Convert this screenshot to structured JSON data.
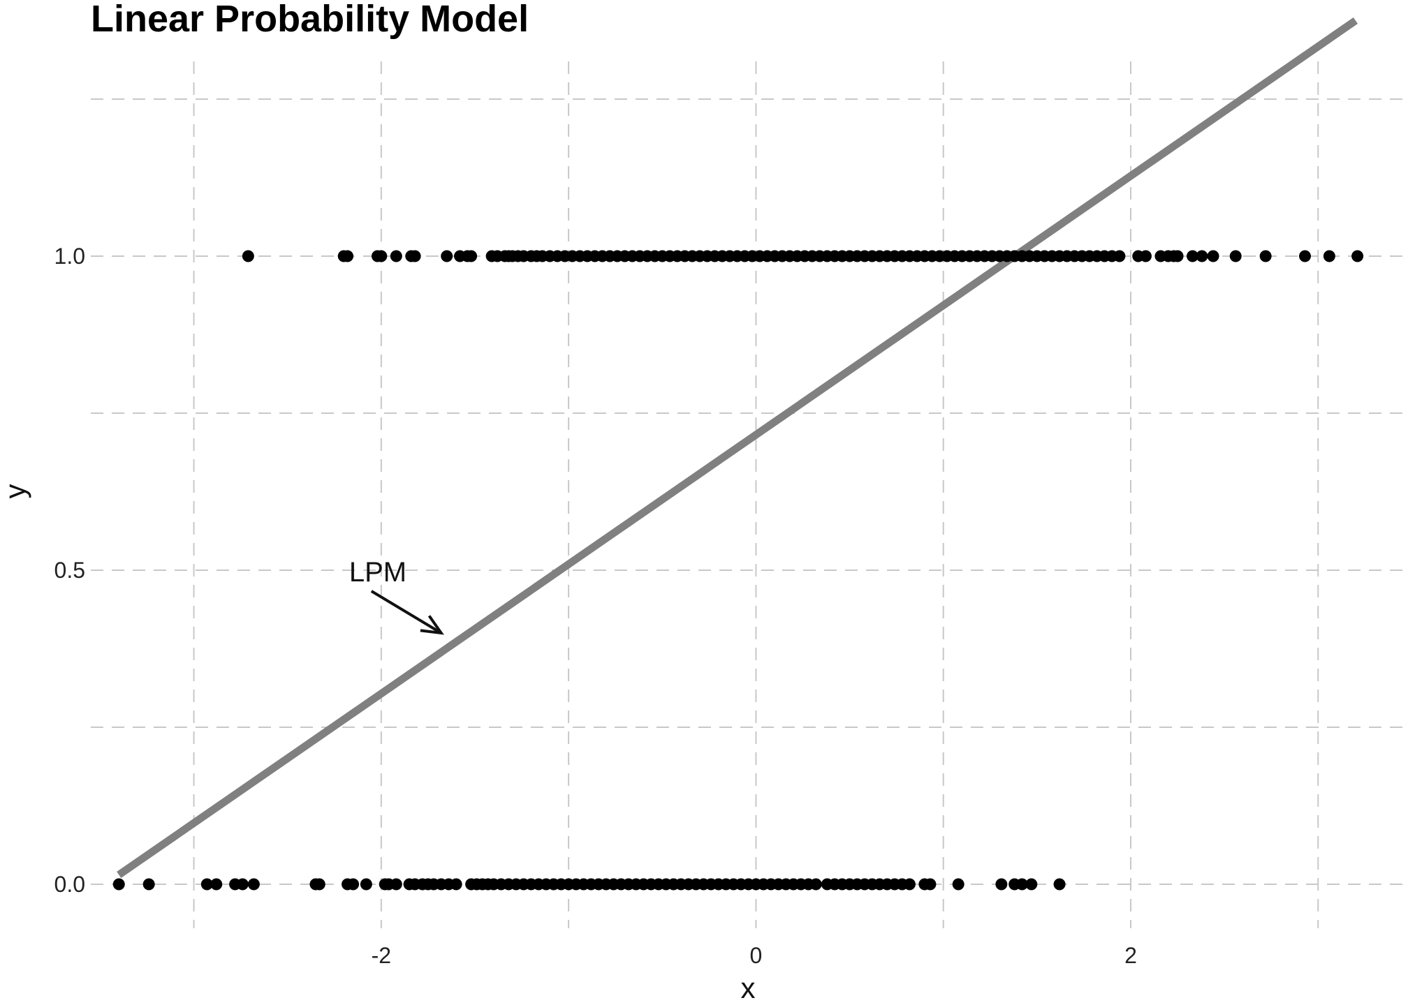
{
  "chart_data": {
    "type": "scatter",
    "title": "Linear Probability Model",
    "xlabel": "x",
    "ylabel": "y",
    "xlim": [
      -3.55,
      3.45
    ],
    "ylim": [
      -0.07,
      1.31
    ],
    "x_ticks": [
      -2,
      0,
      2
    ],
    "x_tick_labels": [
      "-2",
      "0",
      "2"
    ],
    "x_minor_ticks": [
      -3,
      -1,
      1,
      3
    ],
    "y_ticks": [
      0.0,
      0.5,
      1.0
    ],
    "y_tick_labels": [
      "0.0",
      "0.5",
      "1.0"
    ],
    "y_minor_ticks": [
      0.25,
      0.75,
      1.25
    ],
    "grid": "dashed",
    "legend": "none",
    "series": [
      {
        "type": "scatter",
        "color": "#000000",
        "points_y1_x": [
          -2.71,
          -2.2,
          -2.18,
          -2.02,
          -2.0,
          -1.92,
          -1.84,
          -1.82,
          -1.65,
          -1.58,
          -1.54,
          -1.52,
          -1.41,
          -1.38,
          -1.34,
          -1.32,
          -1.3,
          -1.27,
          -1.24,
          -1.2,
          -1.17,
          -1.14,
          -1.1,
          -1.06,
          -1.02,
          -0.98,
          -0.94,
          -0.9,
          -0.86,
          -0.82,
          -0.78,
          -0.74,
          -0.7,
          -0.66,
          -0.62,
          -0.58,
          -0.54,
          -0.5,
          -0.46,
          -0.42,
          -0.38,
          -0.34,
          -0.3,
          -0.26,
          -0.22,
          -0.18,
          -0.14,
          -0.1,
          -0.06,
          -0.02,
          0.02,
          0.06,
          0.1,
          0.14,
          0.18,
          0.22,
          0.26,
          0.3,
          0.34,
          0.38,
          0.42,
          0.46,
          0.5,
          0.54,
          0.58,
          0.62,
          0.66,
          0.7,
          0.74,
          0.78,
          0.82,
          0.86,
          0.9,
          0.94,
          0.98,
          1.02,
          1.06,
          1.1,
          1.14,
          1.18,
          1.22,
          1.26,
          1.3,
          1.34,
          1.38,
          1.42,
          1.46,
          1.5,
          1.54,
          1.58,
          1.62,
          1.66,
          1.7,
          1.74,
          1.78,
          1.82,
          1.86,
          1.9,
          1.94,
          2.04,
          2.08,
          2.16,
          2.2,
          2.23,
          2.25,
          2.33,
          2.38,
          2.44,
          2.56,
          2.72,
          2.93,
          3.06,
          3.21
        ],
        "points_y0_x": [
          -3.4,
          -3.24,
          -2.93,
          -2.88,
          -2.78,
          -2.74,
          -2.68,
          -2.35,
          -2.33,
          -2.18,
          -2.15,
          -2.08,
          -1.98,
          -1.96,
          -1.92,
          -1.85,
          -1.82,
          -1.78,
          -1.75,
          -1.72,
          -1.68,
          -1.64,
          -1.6,
          -1.52,
          -1.49,
          -1.46,
          -1.43,
          -1.4,
          -1.36,
          -1.32,
          -1.28,
          -1.24,
          -1.2,
          -1.16,
          -1.12,
          -1.08,
          -1.04,
          -1.0,
          -0.96,
          -0.92,
          -0.88,
          -0.84,
          -0.8,
          -0.76,
          -0.72,
          -0.68,
          -0.64,
          -0.6,
          -0.56,
          -0.52,
          -0.48,
          -0.44,
          -0.4,
          -0.36,
          -0.32,
          -0.28,
          -0.24,
          -0.2,
          -0.16,
          -0.12,
          -0.08,
          -0.04,
          0.0,
          0.04,
          0.08,
          0.12,
          0.16,
          0.2,
          0.24,
          0.28,
          0.32,
          0.38,
          0.42,
          0.46,
          0.5,
          0.54,
          0.58,
          0.62,
          0.66,
          0.7,
          0.74,
          0.78,
          0.82,
          0.9,
          0.93,
          1.08,
          1.31,
          1.38,
          1.42,
          1.47,
          1.62
        ]
      },
      {
        "type": "line",
        "color": "#808080",
        "x": [
          -3.4,
          3.2
        ],
        "y": [
          0.015,
          1.375
        ]
      }
    ],
    "annotations": [
      {
        "text": "LPM",
        "x": -2.0,
        "y": 0.5,
        "arrow_to": [
          -1.68,
          0.4
        ]
      }
    ]
  }
}
